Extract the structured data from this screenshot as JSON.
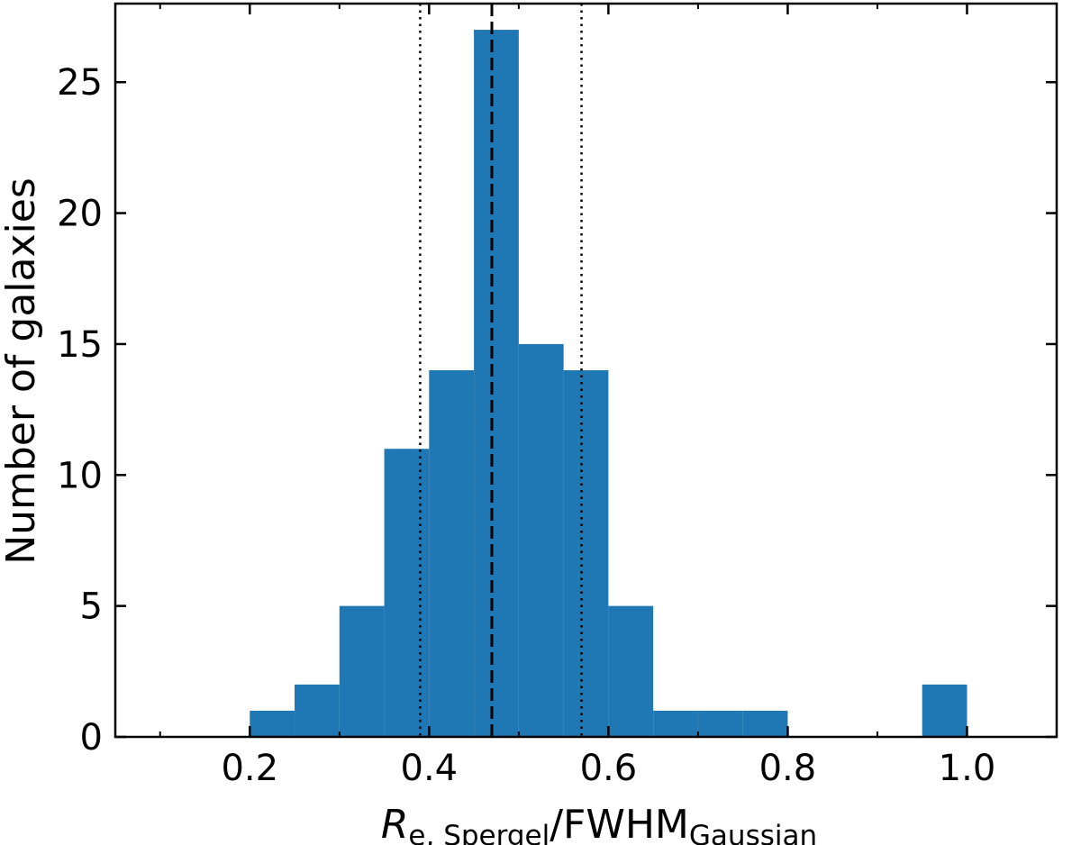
{
  "chart_data": {
    "type": "bar",
    "subtype": "histogram",
    "title": "",
    "xlabel": {
      "symbol": "R",
      "symbol_sub": "e, Spergel",
      "divider": "/",
      "denominator": "FWHM",
      "denominator_sub": "Gaussian"
    },
    "ylabel": "Number of galaxies",
    "xlim": [
      0.05,
      1.1
    ],
    "ylim": [
      0,
      28
    ],
    "x_ticks": [
      0.2,
      0.4,
      0.6,
      0.8,
      1.0
    ],
    "x_tick_labels": [
      "0.2",
      "0.4",
      "0.6",
      "0.8",
      "1.0"
    ],
    "x_minor_ticks": [
      0.1,
      0.3,
      0.5,
      0.7,
      0.9,
      1.1
    ],
    "y_ticks": [
      0,
      5,
      10,
      15,
      20,
      25
    ],
    "y_tick_labels": [
      "0",
      "5",
      "10",
      "15",
      "20",
      "25"
    ],
    "bin_edges": [
      0.2,
      0.25,
      0.3,
      0.35,
      0.4,
      0.45,
      0.5,
      0.55,
      0.6,
      0.65,
      0.7,
      0.75,
      0.8,
      0.85,
      0.9,
      0.95,
      1.0
    ],
    "counts": [
      1,
      2,
      5,
      11,
      14,
      27,
      15,
      14,
      5,
      1,
      1,
      1,
      0,
      0,
      0,
      2
    ],
    "bar_color": "#1f77b4",
    "grid": false,
    "vlines": [
      {
        "x": 0.47,
        "style": "dashed"
      },
      {
        "x": 0.39,
        "style": "dotted"
      },
      {
        "x": 0.57,
        "style": "dotted"
      }
    ]
  }
}
